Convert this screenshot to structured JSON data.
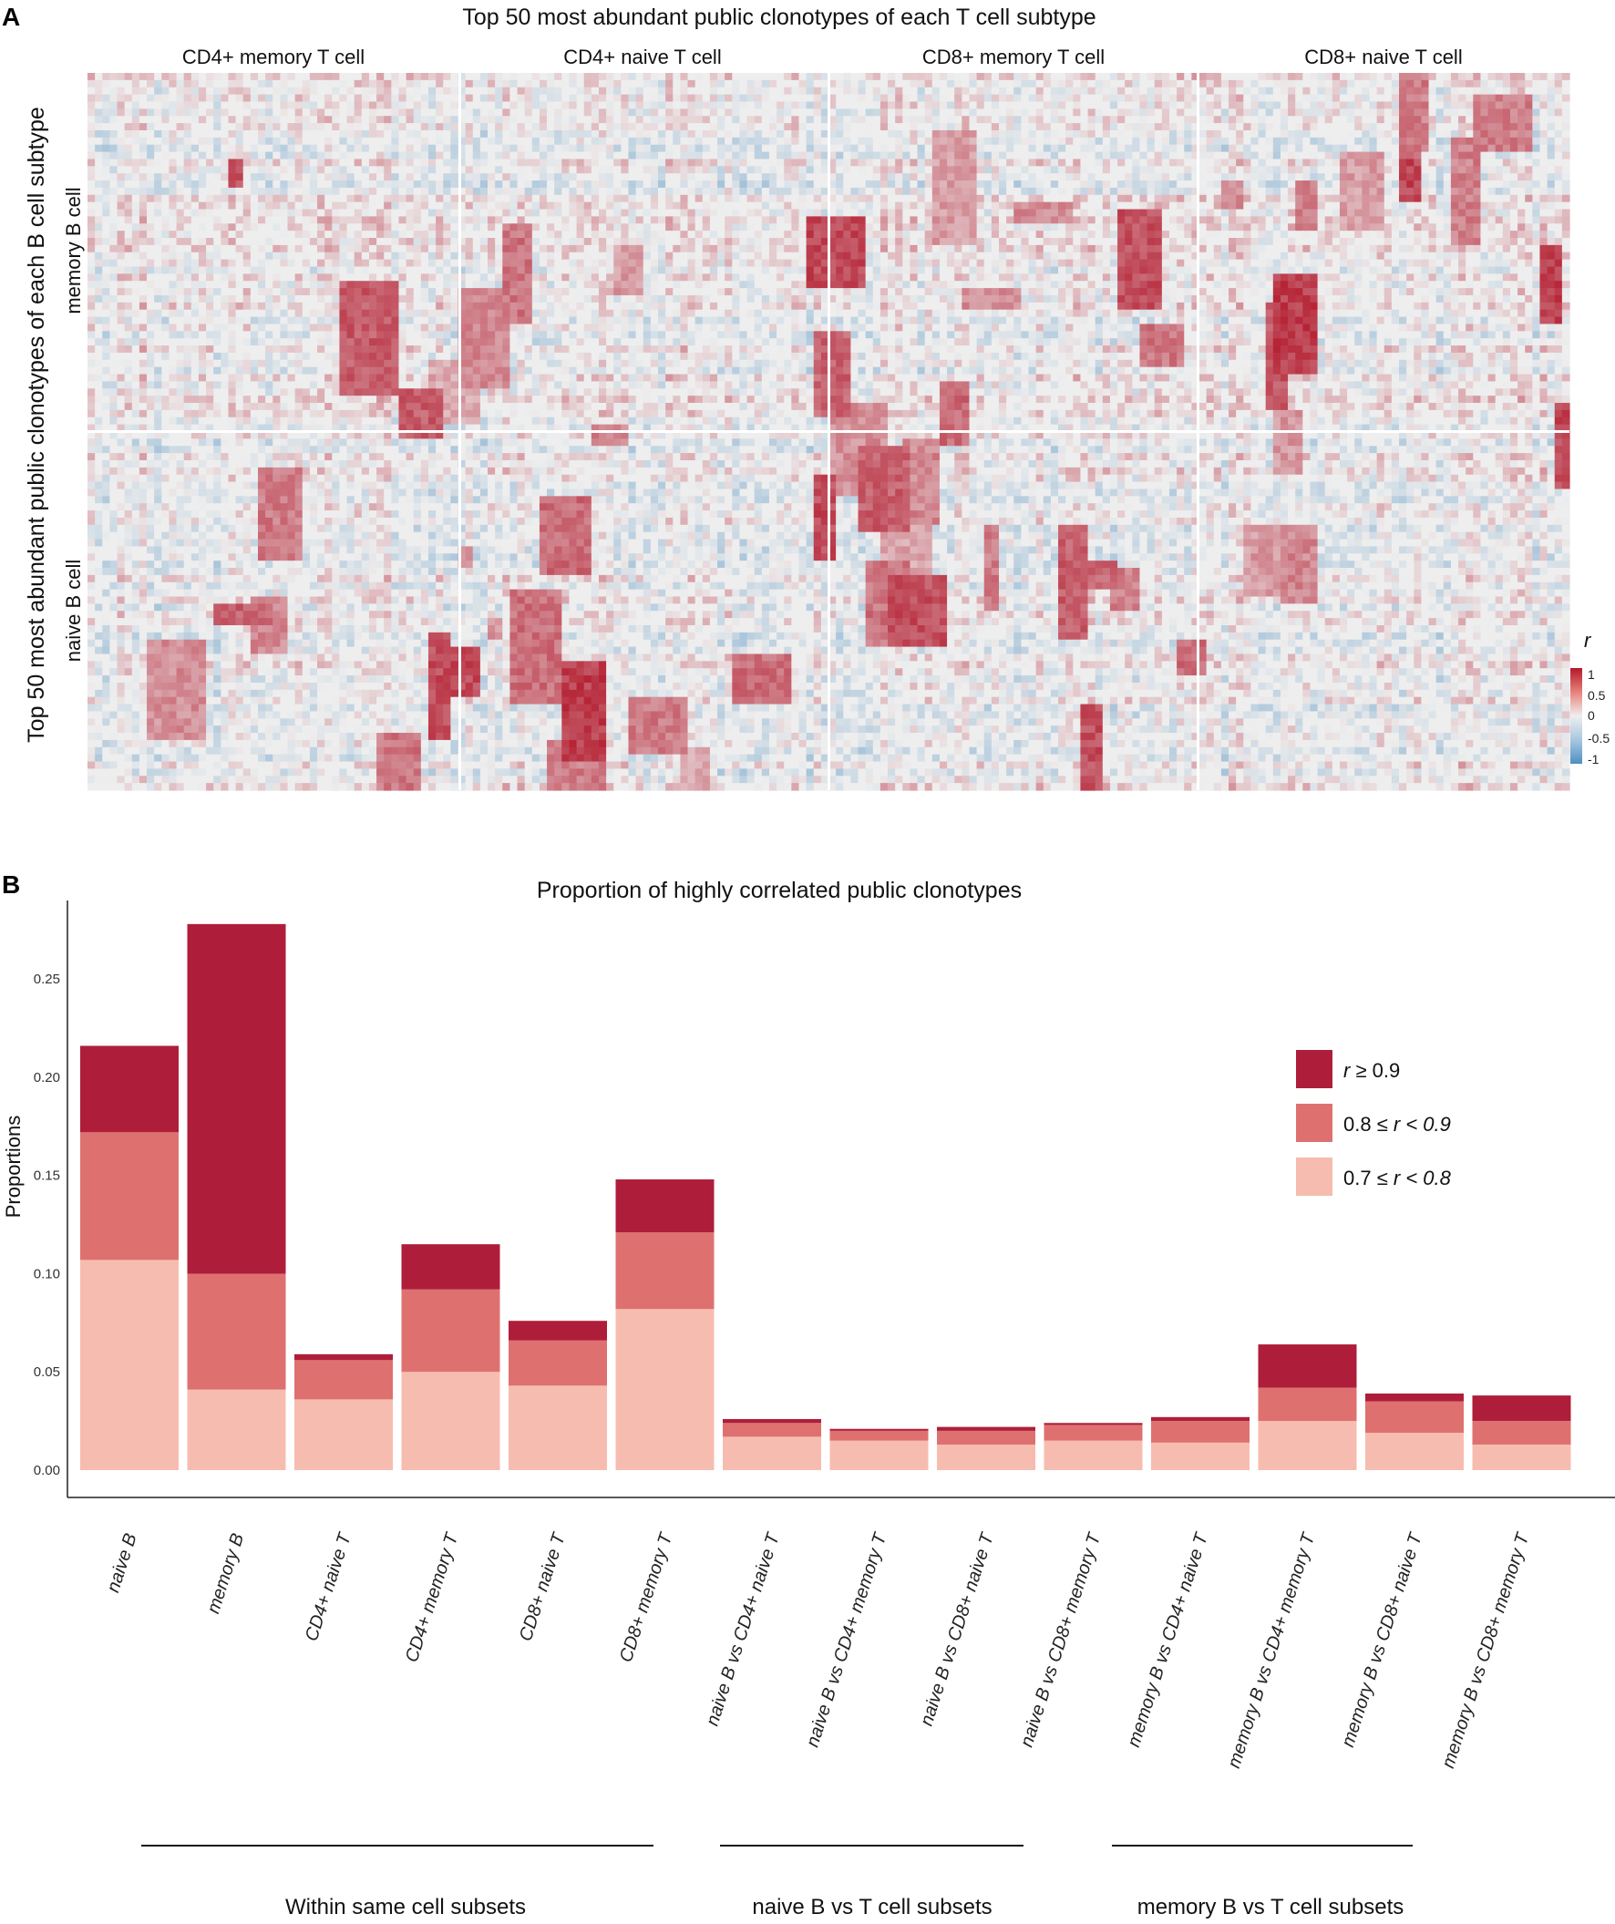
{
  "chart_data": [
    {
      "panel": "A",
      "type": "heatmap",
      "title": "Top 50 most abundant public clonotypes of each T cell subtype",
      "ylabel": "Top 50 most abundant public clonotypes of each B cell subtype",
      "column_groups": [
        "CD4+ memory T cell",
        "CD4+ naive T cell",
        "CD8+ memory T cell",
        "CD8+ naive T cell"
      ],
      "row_groups": [
        "memory B cell",
        "naive B cell"
      ],
      "columns_per_group": 50,
      "rows_per_group": 50,
      "value_range": [
        -1,
        1
      ],
      "colorbar": {
        "title": "r",
        "ticks": [
          "1",
          "0.5",
          "0",
          "-0.5",
          "-1"
        ],
        "low_color": "#4f8fc0",
        "mid_color": "#eeeeee",
        "high_color": "#b2182b"
      }
    },
    {
      "panel": "B",
      "type": "bar",
      "stacked": true,
      "title": "Proportion of highly correlated public clonotypes",
      "ylabel": "Proportions",
      "xlabel": "",
      "ylim": [
        0,
        0.29
      ],
      "yticks": [
        "0.00",
        "0.05",
        "0.10",
        "0.15",
        "0.20",
        "0.25"
      ],
      "yticks_values": [
        0,
        0.05,
        0.1,
        0.15,
        0.2,
        0.25
      ],
      "categories": [
        "naive B",
        "memory B",
        "CD4+ naive T",
        "CD4+ memory T",
        "CD8+ naive T",
        "CD8+ memory T",
        "naive B vs CD4+ naive T",
        "naive B vs CD4+ memory T",
        "naive B vs CD8+ naive T",
        "naive B vs CD8+ memory T",
        "memory B vs CD4+ naive T",
        "memory B vs CD4+ memory T",
        "memory B vs CD8+ naive T",
        "memory B vs CD8+ memory T"
      ],
      "series": [
        {
          "name": "0.7 ≤ r < 0.8",
          "color": "#f7bcb0",
          "values": [
            0.107,
            0.041,
            0.036,
            0.05,
            0.043,
            0.082,
            0.017,
            0.015,
            0.013,
            0.015,
            0.014,
            0.025,
            0.019,
            0.013
          ]
        },
        {
          "name": "0.8 ≤ r < 0.9",
          "color": "#de7170",
          "values": [
            0.065,
            0.059,
            0.02,
            0.042,
            0.023,
            0.039,
            0.007,
            0.005,
            0.007,
            0.008,
            0.011,
            0.017,
            0.016,
            0.012
          ]
        },
        {
          "name": "r ≥ 0.9",
          "color": "#ae1e3a",
          "values": [
            0.044,
            0.178,
            0.003,
            0.023,
            0.01,
            0.027,
            0.002,
            0.001,
            0.002,
            0.001,
            0.002,
            0.022,
            0.004,
            0.013
          ]
        }
      ],
      "legend_position": "top-right",
      "groups": [
        {
          "label": "Within same cell subsets",
          "members": [
            0,
            5
          ]
        },
        {
          "label": "naive B vs T cell subsets",
          "members": [
            6,
            9
          ]
        },
        {
          "label": "memory B vs T cell subsets",
          "members": [
            10,
            13
          ]
        }
      ]
    }
  ],
  "legend": {
    "high_prefix": "r",
    "high_suffix": " ≥ 0.9",
    "mid_prefix": "0.8 ≤ ",
    "mid_r": "r",
    "mid_suffix": " < 0.9",
    "low_prefix": "0.7 ≤ ",
    "low_r": "r",
    "low_suffix": " < 0.8"
  },
  "panel_labels": {
    "a": "A",
    "b": "B"
  }
}
